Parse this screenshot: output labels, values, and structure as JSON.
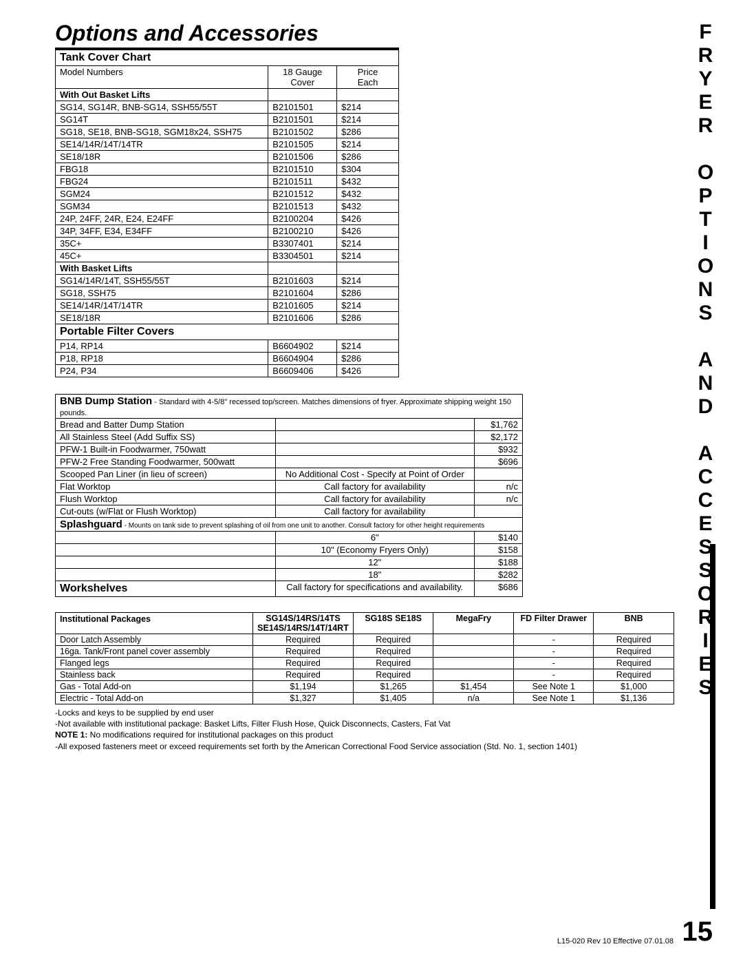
{
  "title": "Options and Accessories",
  "side_label": "FRYER OPTIONS AND ACCESSORIES",
  "page_number": "15",
  "revision": "L15-020 Rev 10 Effective 07.01.08",
  "tank_cover": {
    "title": "Tank Cover Chart",
    "col1": "Model Numbers",
    "col2a": "18 Gauge",
    "col2b": "Cover",
    "col3a": "Price",
    "col3b": "Each",
    "group1": "With Out Basket Lifts",
    "rows1": [
      {
        "m": "SG14, SG14R, BNB-SG14, SSH55/55T",
        "c": "B2101501",
        "p": "$214"
      },
      {
        "m": "SG14T",
        "c": "B2101501",
        "p": "$214"
      },
      {
        "m": "SG18, SE18, BNB-SG18, SGM18x24, SSH75",
        "c": "B2101502",
        "p": "$286"
      },
      {
        "m": "SE14/14R/14T/14TR",
        "c": "B2101505",
        "p": "$214"
      },
      {
        "m": "SE18/18R",
        "c": "B2101506",
        "p": "$286"
      },
      {
        "m": "FBG18",
        "c": "B2101510",
        "p": "$304"
      },
      {
        "m": "FBG24",
        "c": "B2101511",
        "p": "$432"
      },
      {
        "m": "SGM24",
        "c": "B2101512",
        "p": "$432"
      },
      {
        "m": "SGM34",
        "c": "B2101513",
        "p": "$432"
      },
      {
        "m": "24P, 24FF, 24R, E24, E24FF",
        "c": "B2100204",
        "p": "$426"
      },
      {
        "m": "34P, 34FF, E34, E34FF",
        "c": "B2100210",
        "p": "$426"
      },
      {
        "m": "35C+",
        "c": "B3307401",
        "p": "$214"
      },
      {
        "m": "45C+",
        "c": "B3304501",
        "p": "$214"
      }
    ],
    "group2": "With Basket Lifts",
    "rows2": [
      {
        "m": "SG14/14R/14T, SSH55/55T",
        "c": "B2101603",
        "p": "$214"
      },
      {
        "m": "SG18, SSH75",
        "c": "B2101604",
        "p": "$286"
      },
      {
        "m": "SE14/14R/14T/14TR",
        "c": "B2101605",
        "p": "$214"
      },
      {
        "m": "SE18/18R",
        "c": "B2101606",
        "p": "$286"
      }
    ],
    "group3": "Portable Filter Covers",
    "rows3": [
      {
        "m": "P14, RP14",
        "c": "B6604902",
        "p": "$214"
      },
      {
        "m": "P18, RP18",
        "c": "B6604904",
        "p": "$286"
      },
      {
        "m": "P24, P34",
        "c": "B6609406",
        "p": "$426"
      }
    ]
  },
  "bnb": {
    "title": "BNB Dump Station",
    "subtitle": " - Standard with 4-5/8\" recessed top/screen. Matches dimensions of fryer. Approximate shipping weight 150 pounds.",
    "rows": [
      {
        "d": "Bread and Batter Dump Station",
        "n": "",
        "p": "$1,762"
      },
      {
        "d": "All Stainless Steel (Add Suffix SS)",
        "n": "",
        "p": "$2,172"
      },
      {
        "d": "PFW-1 Built-in Foodwarmer, 750watt",
        "n": "",
        "p": "$932"
      },
      {
        "d": "PFW-2 Free Standing Foodwarmer, 500watt",
        "n": "",
        "p": "$696"
      },
      {
        "d": "Scooped Pan Liner (in lieu of screen)",
        "n": "No Additional Cost - Specify at Point of Order",
        "p": ""
      },
      {
        "d": "Flat Worktop",
        "n": "Call factory for availability",
        "p": "n/c"
      },
      {
        "d": "Flush Worktop",
        "n": "Call factory for availability",
        "p": "n/c"
      },
      {
        "d": "Cut-outs (w/Flat or Flush Worktop)",
        "n": "Call factory for availability",
        "p": ""
      }
    ],
    "splash_title": "Splashguard",
    "splash_sub": " - Mounts on tank side to prevent splashing of oil from one unit to another. Consult factory for other height requirements",
    "splash_rows": [
      {
        "n": "6\"",
        "p": "$140"
      },
      {
        "n": "10\" (Economy Fryers Only)",
        "p": "$158"
      },
      {
        "n": "12\"",
        "p": "$188"
      },
      {
        "n": "18\"",
        "p": "$282"
      }
    ],
    "workshelves_label": "Workshelves",
    "workshelves_note": "Call factory for specifications and availability.",
    "workshelves_price": "$686"
  },
  "inst": {
    "title": "Institutional Packages",
    "headers": [
      "SG14S/14RS/14TS SE14S/14RS/14T/14RT",
      "SG18S SE18S",
      "MegaFry",
      "FD Filter Drawer",
      "BNB"
    ],
    "rows": [
      {
        "d": "Door Latch Assembly",
        "v": [
          "Required",
          "Required",
          "",
          "-",
          "Required"
        ]
      },
      {
        "d": "16ga. Tank/Front panel cover assembly",
        "v": [
          "Required",
          "Required",
          "",
          "-",
          "Required"
        ]
      },
      {
        "d": "Flanged legs",
        "v": [
          "Required",
          "Required",
          "",
          "-",
          "Required"
        ]
      },
      {
        "d": "Stainless back",
        "v": [
          "Required",
          "Required",
          "",
          "-",
          "Required"
        ]
      },
      {
        "d": "Gas - Total Add-on",
        "v": [
          "$1,194",
          "$1,265",
          "$1,454",
          "See Note 1",
          "$1,000"
        ]
      },
      {
        "d": "Electric - Total Add-on",
        "v": [
          "$1,327",
          "$1,405",
          "n/a",
          "See Note 1",
          "$1,136"
        ]
      }
    ],
    "notes": [
      "-Locks and keys to be supplied by end user",
      "-Not available with institutional package: Basket Lifts, Filter Flush Hose, Quick Disconnects, Casters, Fat Vat",
      "NOTE 1: No modifications required for institutional packages on this product",
      "-All exposed fasteners meet or exceed requirements set forth by the American Correctional Food Service association (Std. No. 1, section 1401)"
    ]
  }
}
